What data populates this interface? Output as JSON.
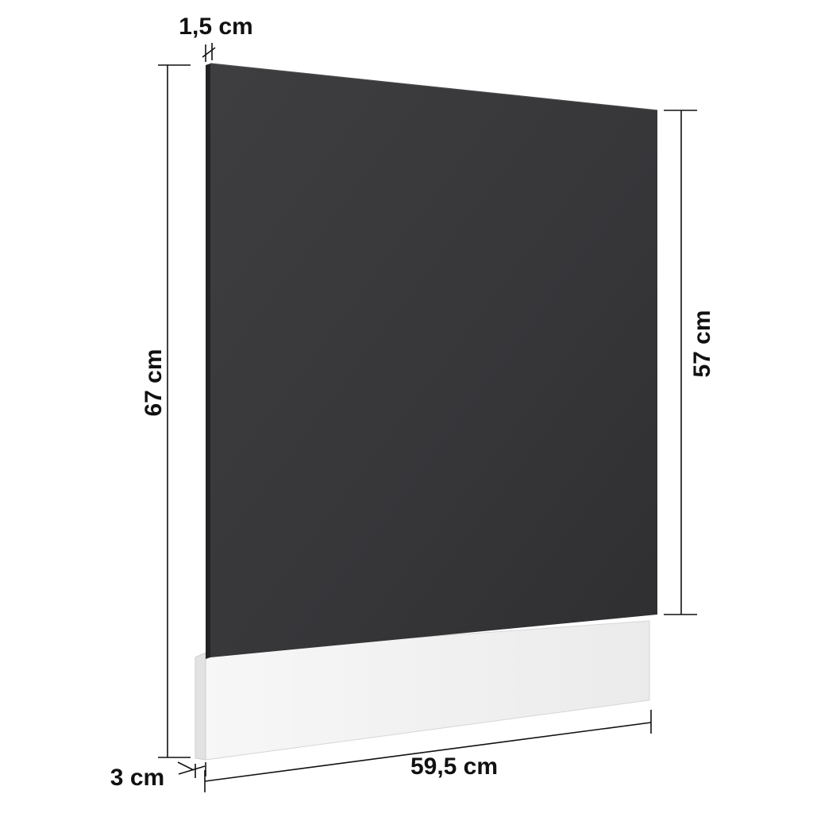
{
  "figure": {
    "panel_color": "#3a3a3c",
    "plinth_color": "#f4f4f4",
    "line_color": "#111111"
  },
  "dimensions": {
    "thickness_top": "1,5 cm",
    "total_height": "67 cm",
    "panel_height": "57 cm",
    "width": "59,5 cm",
    "plinth_thickness": "3 cm"
  }
}
